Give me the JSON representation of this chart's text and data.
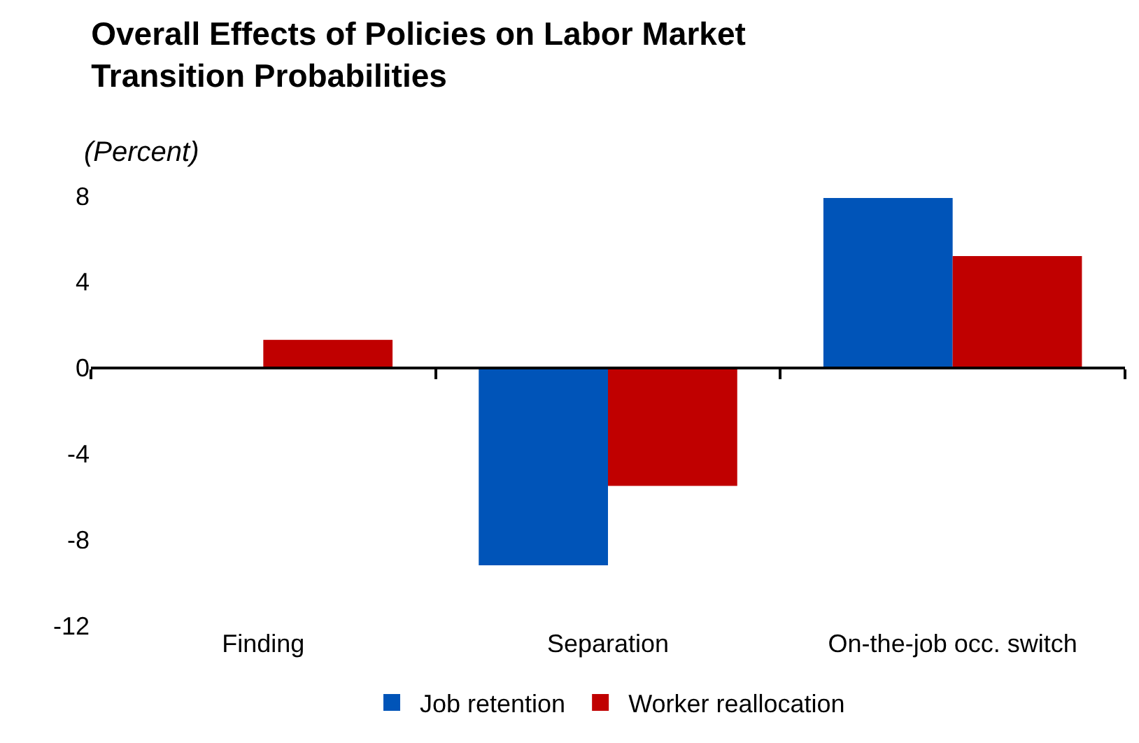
{
  "chart_data": {
    "type": "bar",
    "title": "Overall Effects of Policies on Labor Market Transition Probabilities",
    "subtitle": "(Percent)",
    "categories": [
      "Finding",
      "Separation",
      "On-the-job occ. switch"
    ],
    "series": [
      {
        "name": "Job retention",
        "color": "#0054b8",
        "values": [
          0,
          -9.2,
          7.9
        ]
      },
      {
        "name": "Worker reallocation",
        "color": "#c00000",
        "values": [
          1.3,
          -5.5,
          5.2
        ]
      }
    ],
    "ylim": [
      -12,
      8
    ],
    "yticks": [
      -12,
      -8,
      -4,
      0,
      4,
      8
    ],
    "legend": "bottom"
  }
}
